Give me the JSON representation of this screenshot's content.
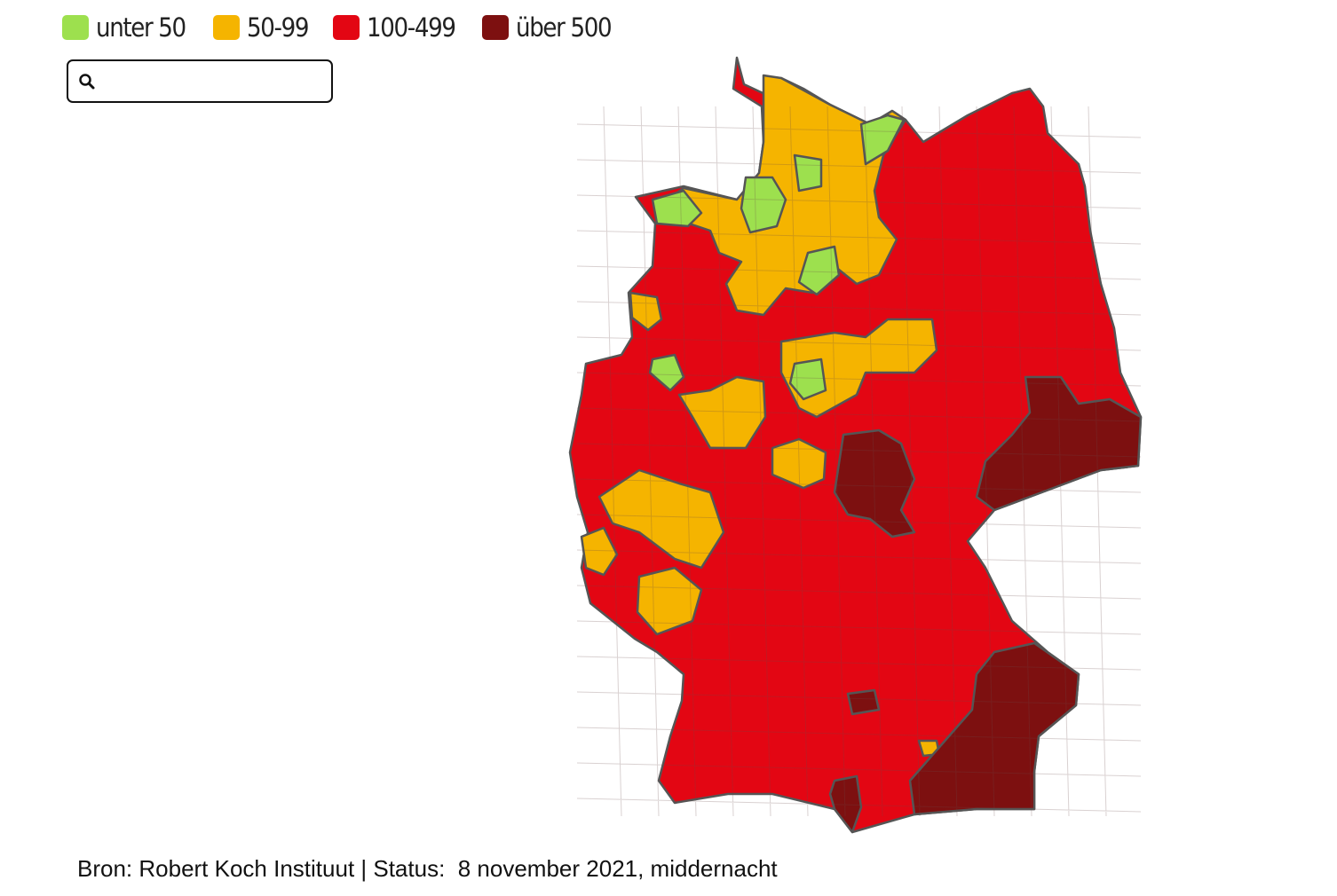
{
  "legend": [
    {
      "label": "unter 50",
      "color": "#9de04e"
    },
    {
      "label": "50-99",
      "color": "#f5b400"
    },
    {
      "label": "100-499",
      "color": "#e30613"
    },
    {
      "label": "über 500",
      "color": "#7d1010"
    }
  ],
  "source": "Bron: Robert Koch Instituut | Status:  8 november 2021, middernacht"
}
